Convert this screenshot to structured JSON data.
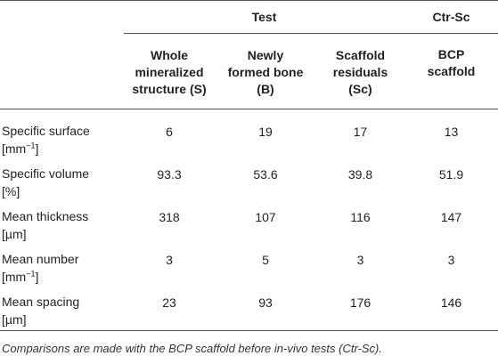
{
  "header": {
    "group_test": "Test",
    "group_ctr": "Ctr-Sc",
    "columns": [
      [
        "Whole",
        "mineralized",
        "structure (S)"
      ],
      [
        "Newly",
        "formed bone",
        "(B)"
      ],
      [
        "Scaffold",
        "residuals",
        "(Sc)"
      ],
      [
        "BCP",
        "scaffold"
      ]
    ]
  },
  "rows": [
    {
      "label_1": "Specific surface",
      "unit_pre": "[mm",
      "unit_sup": "−1",
      "unit_post": "]",
      "values": [
        "6",
        "19",
        "17",
        "13"
      ]
    },
    {
      "label_1": "Specific volume",
      "unit_pre": "[%]",
      "unit_sup": "",
      "unit_post": "",
      "values": [
        "93.3",
        "53.6",
        "39.8",
        "51.9"
      ]
    },
    {
      "label_1": "Mean thickness",
      "unit_pre": "[µm]",
      "unit_sup": "",
      "unit_post": "",
      "values": [
        "318",
        "107",
        "116",
        "147"
      ]
    },
    {
      "label_1": "Mean number",
      "unit_pre": "[mm",
      "unit_sup": "−1",
      "unit_post": "]",
      "values": [
        "3",
        "5",
        "3",
        "3"
      ]
    },
    {
      "label_1": "Mean spacing",
      "unit_pre": "[µm]",
      "unit_sup": "",
      "unit_post": "",
      "values": [
        "23",
        "93",
        "176",
        "146"
      ]
    }
  ],
  "footnote": "Comparisons are made with the BCP scaffold before in-vivo tests (Ctr-Sc)."
}
